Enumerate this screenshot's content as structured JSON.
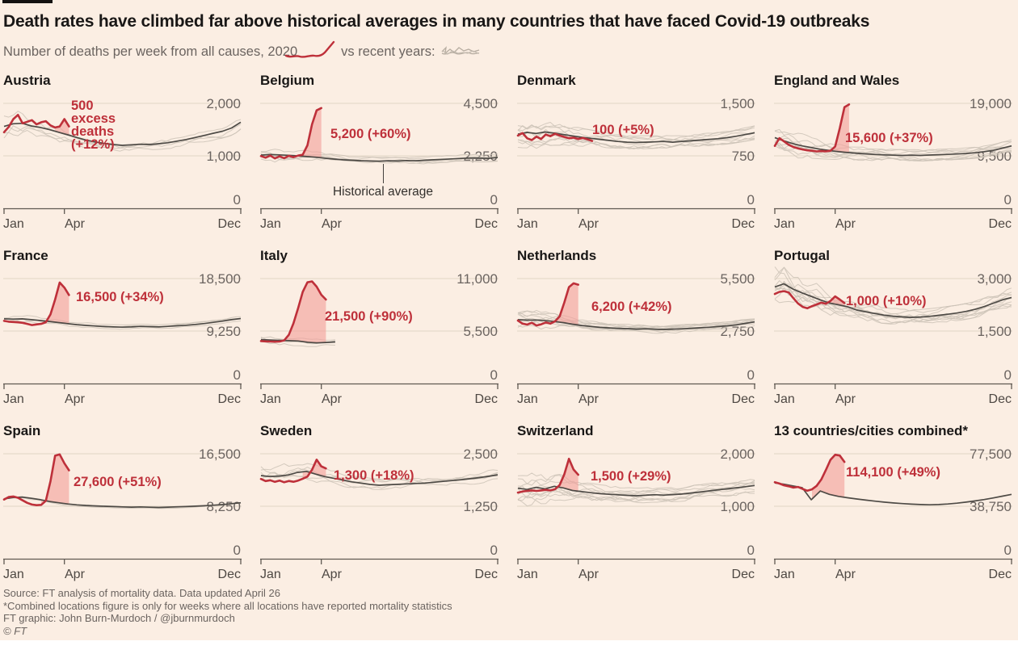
{
  "header": {
    "title": "Death rates have climbed far above historical averages in many countries that have faced Covid-19 outbreaks",
    "subtitle_prefix": "Number of deaths per week from all causes,",
    "subtitle_2020": "2020",
    "subtitle_vs": "vs recent years:"
  },
  "icons": {
    "legend_2020": "red-2020-line-icon",
    "legend_recent": "grey-recent-years-lines-icon"
  },
  "colors": {
    "background": "#FBEEE3",
    "red": "#BE303A",
    "shade": "#F2A09B",
    "avg": "#45413D",
    "recent": "#CDC3B7",
    "grid": "#E7DACB",
    "axis": "#5f5952",
    "ylabel": "#6b6460",
    "xlabel": "#4e4843",
    "title": "#191716"
  },
  "footer": {
    "source": "Source: FT analysis of mortality data. Data updated April 26",
    "note": "*Combined locations figure is only for weeks where all locations have reported mortality statistics",
    "credit": "FT graphic: John Burn-Murdoch / @jburnmurdoch",
    "copyright": "© FT"
  },
  "x_axis": {
    "tick_labels": [
      "Jan",
      "Apr",
      "Dec"
    ],
    "tick_weeks": [
      1,
      14,
      52
    ],
    "weeks_per_year": 52
  },
  "series_legend": {
    "red": "2020 deaths per week",
    "dark": "Historical average",
    "grey": "Individual recent years"
  },
  "chart_data": [
    {
      "type": "line",
      "name": "Austria",
      "ylim": [
        0,
        2000
      ],
      "yticks": [
        "2,000",
        "1,000",
        "0"
      ],
      "annotation": {
        "lines": [
          "500",
          "excess",
          "deaths",
          "(+12%)"
        ],
        "x": 84,
        "y": 8
      },
      "shade_from": 12,
      "recent_count": 4,
      "noise_amp": 0.05,
      "seed": 11,
      "end_week": 52,
      "avg": [
        1560,
        1610,
        1620,
        1570,
        1540,
        1500,
        1450,
        1400,
        1350,
        1300,
        1265,
        1235,
        1215,
        1200,
        1210,
        1220,
        1215,
        1230,
        1250,
        1280,
        1310,
        1350,
        1390,
        1430,
        1470,
        1530,
        1640
      ],
      "y2020": [
        1450,
        1550,
        1700,
        1780,
        1620,
        1650,
        1680,
        1600,
        1640,
        1660,
        1580,
        1540,
        1560,
        1700,
        1560
      ]
    },
    {
      "type": "line",
      "name": "Belgium",
      "ylim": [
        0,
        4500
      ],
      "yticks": [
        "4,500",
        "2,250",
        "0"
      ],
      "annotation": {
        "lines": [
          "5,200 (+60%)"
        ],
        "x": 87,
        "y": 43
      },
      "extra_label": {
        "text": "Historical average",
        "x": 152,
        "line_top": 88,
        "line_bottom": 112,
        "text_top": 114
      },
      "shade_from": 9,
      "recent_count": 5,
      "noise_amp": 0.04,
      "seed": 22,
      "end_week": 52,
      "avg": [
        2280,
        2310,
        2290,
        2270,
        2250,
        2220,
        2190,
        2150,
        2110,
        2080,
        2060,
        2040,
        2030,
        2020,
        2040,
        2030,
        2050,
        2040,
        2060,
        2080,
        2100,
        2120,
        2140,
        2160,
        2150,
        2140,
        2180
      ],
      "y2020": [
        2240,
        2170,
        2260,
        2140,
        2230,
        2150,
        2250,
        2190,
        2260,
        2300,
        2700,
        3600,
        4200,
        4300
      ]
    },
    {
      "type": "line",
      "name": "Denmark",
      "ylim": [
        0,
        1500
      ],
      "yticks": [
        "1,500",
        "750",
        "0"
      ],
      "annotation": {
        "lines": [
          "100 (+5%)"
        ],
        "x": 93,
        "y": 38
      },
      "shade_from": 12,
      "recent_count": 9,
      "noise_amp": 0.05,
      "seed": 33,
      "end_week": 52,
      "avg": [
        1060,
        1085,
        1070,
        1090,
        1075,
        1055,
        1035,
        1015,
        1000,
        985,
        970,
        955,
        945,
        940,
        945,
        950,
        955,
        945,
        955,
        965,
        975,
        985,
        995,
        1010,
        1030,
        1055,
        1080
      ],
      "y2020": [
        1040,
        1075,
        1000,
        975,
        1025,
        990,
        1055,
        1030,
        1065,
        1040,
        1020,
        1000,
        1010,
        990,
        1005,
        985,
        962
      ]
    },
    {
      "type": "line",
      "name": "England and Wales",
      "ylim": [
        0,
        19000
      ],
      "yticks": [
        "19,000",
        "9,500",
        "0"
      ],
      "annotation": {
        "lines": [
          "15,600 (+37%)"
        ],
        "x": 88,
        "y": 48
      },
      "shade_from": 13,
      "recent_count": 9,
      "noise_amp": 0.055,
      "seed": 44,
      "end_week": 52,
      "avg": [
        12800,
        12200,
        11700,
        11300,
        11000,
        10700,
        10450,
        10250,
        10100,
        9950,
        9850,
        9750,
        9680,
        9620,
        9580,
        9620,
        9580,
        9640,
        9700,
        9760,
        9830,
        9920,
        10050,
        10250,
        10500,
        10900,
        11300
      ],
      "y2020": [
        11300,
        12700,
        12100,
        11500,
        11100,
        10850,
        10650,
        10500,
        10420,
        10300,
        10360,
        10300,
        10420,
        11200,
        14500,
        18300,
        18800
      ]
    },
    {
      "type": "line",
      "name": "France",
      "ylim": [
        0,
        18500
      ],
      "yticks": [
        "18,500",
        "9,250",
        "0"
      ],
      "annotation": {
        "lines": [
          "16,500 (+34%)"
        ],
        "x": 90,
        "y": 28
      },
      "shade_from": 10,
      "recent_count": 3,
      "noise_amp": 0.02,
      "seed": 55,
      "end_week": 52,
      "avg": [
        11400,
        11350,
        11400,
        11250,
        11100,
        10950,
        10750,
        10550,
        10380,
        10250,
        10150,
        10050,
        9980,
        9930,
        9980,
        10080,
        10030,
        9980,
        10080,
        10180,
        10280,
        10400,
        10580,
        10780,
        11000,
        11250,
        11450
      ],
      "y2020": [
        11050,
        10900,
        10850,
        10780,
        10700,
        10520,
        10300,
        10420,
        10520,
        10800,
        12200,
        14800,
        17800,
        16900,
        15600
      ]
    },
    {
      "type": "line",
      "name": "Italy",
      "ylim": [
        0,
        11000
      ],
      "yticks": [
        "11,000",
        "5,500",
        "0"
      ],
      "annotation": {
        "lines": [
          "21,500 (+90%)"
        ],
        "x": 80,
        "y": 52
      },
      "shade_from": 6,
      "recent_count": 4,
      "noise_amp": 0.035,
      "seed": 66,
      "end_week": 17,
      "avg": [
        4600,
        4560,
        4520,
        4490,
        4460,
        4320,
        4260,
        4310,
        4360
      ],
      "y2020": [
        4450,
        4420,
        4400,
        4380,
        4400,
        4520,
        5100,
        6300,
        7900,
        9600,
        10600,
        10700,
        10150,
        9300,
        8800
      ]
    },
    {
      "type": "line",
      "name": "Netherlands",
      "ylim": [
        0,
        5500
      ],
      "yticks": [
        "5,500",
        "2,750",
        "0"
      ],
      "annotation": {
        "lines": [
          "6,200 (+42%)"
        ],
        "x": 92,
        "y": 40
      },
      "shade_from": 9,
      "recent_count": 9,
      "noise_amp": 0.04,
      "seed": 77,
      "end_week": 52,
      "avg": [
        3350,
        3320,
        3330,
        3290,
        3250,
        3190,
        3110,
        3040,
        2990,
        2945,
        2915,
        2895,
        2875,
        2850,
        2870,
        2850,
        2830,
        2850,
        2870,
        2895,
        2920,
        2950,
        2985,
        3025,
        3080,
        3150,
        3230
      ],
      "y2020": [
        3300,
        3140,
        3090,
        3180,
        3040,
        3100,
        3200,
        3140,
        3260,
        3520,
        4250,
        5050,
        5250,
        5180
      ]
    },
    {
      "type": "line",
      "name": "Portugal",
      "ylim": [
        0,
        3000
      ],
      "yticks": [
        "3,000",
        "1,500",
        "0"
      ],
      "annotation": {
        "lines": [
          "1,000 (+10%)"
        ],
        "x": 89,
        "y": 33
      },
      "shade_from": 12,
      "recent_count": 10,
      "noise_amp": 0.06,
      "seed": 88,
      "end_week": 52,
      "avg": [
        2760,
        2850,
        2700,
        2590,
        2490,
        2390,
        2300,
        2250,
        2195,
        2100,
        2050,
        2000,
        1955,
        1925,
        1905,
        1890,
        1900,
        1920,
        1950,
        1980,
        2015,
        2060,
        2120,
        2200,
        2295,
        2390,
        2460
      ],
      "y2020": [
        2560,
        2620,
        2640,
        2600,
        2440,
        2290,
        2190,
        2150,
        2210,
        2260,
        2310,
        2280,
        2360,
        2490,
        2400,
        2300
      ]
    },
    {
      "type": "line",
      "name": "Spain",
      "ylim": [
        0,
        16500
      ],
      "yticks": [
        "16,500",
        "8,250",
        "0"
      ],
      "annotation": {
        "lines": [
          "27,600 (+51%)"
        ],
        "x": 87,
        "y": 40
      },
      "shade_from": 9,
      "recent_count": 2,
      "noise_amp": 0.012,
      "seed": 99,
      "end_week": 52,
      "avg": [
        9400,
        9620,
        9700,
        9500,
        9280,
        9000,
        8790,
        8600,
        8460,
        8360,
        8300,
        8250,
        8200,
        8150,
        8110,
        8150,
        8100,
        8060,
        8110,
        8160,
        8210,
        8260,
        8320,
        8410,
        8510,
        8660,
        8800
      ],
      "y2020": [
        9300,
        9700,
        9790,
        9580,
        9180,
        8780,
        8520,
        8420,
        8470,
        9100,
        12200,
        16200,
        16400,
        15000,
        13900
      ]
    },
    {
      "type": "line",
      "name": "Sweden",
      "ylim": [
        0,
        2500
      ],
      "yticks": [
        "2,500",
        "1,250",
        "0"
      ],
      "annotation": {
        "lines": [
          "1,300 (+18%)"
        ],
        "x": 91,
        "y": 32
      },
      "shade_from": 10,
      "recent_count": 5,
      "noise_amp": 0.04,
      "seed": 110,
      "end_week": 52,
      "avg": [
        1980,
        1955,
        1970,
        1995,
        2055,
        2080,
        2015,
        1955,
        1915,
        1875,
        1830,
        1800,
        1770,
        1750,
        1762,
        1772,
        1782,
        1792,
        1802,
        1822,
        1842,
        1862,
        1882,
        1905,
        1932,
        1962,
        2000
      ],
      "y2020": [
        1900,
        1850,
        1870,
        1830,
        1862,
        1822,
        1852,
        1832,
        1862,
        1905,
        1955,
        2120,
        2360,
        2200,
        2150
      ]
    },
    {
      "type": "line",
      "name": "Switzerland",
      "ylim": [
        0,
        2000
      ],
      "yticks": [
        "2,000",
        "1,000",
        "0"
      ],
      "annotation": {
        "lines": [
          "1,500 (+29%)"
        ],
        "x": 91,
        "y": 33
      },
      "shade_from": 9,
      "recent_count": 9,
      "noise_amp": 0.06,
      "seed": 121,
      "end_week": 52,
      "avg": [
        1345,
        1320,
        1360,
        1330,
        1380,
        1350,
        1300,
        1278,
        1258,
        1240,
        1228,
        1218,
        1208,
        1200,
        1210,
        1220,
        1212,
        1222,
        1232,
        1252,
        1272,
        1292,
        1312,
        1332,
        1352,
        1372,
        1395
      ],
      "y2020": [
        1260,
        1282,
        1292,
        1302,
        1292,
        1302,
        1312,
        1302,
        1325,
        1405,
        1610,
        1905,
        1700,
        1600
      ]
    },
    {
      "type": "line",
      "name": "13 countries/cities combined*",
      "ylim": [
        0,
        77500
      ],
      "yticks": [
        "77,500",
        "38,750",
        "0"
      ],
      "annotation": {
        "lines": [
          "114,100 (+49%)"
        ],
        "x": 89,
        "y": 28
      },
      "shade_from": 9,
      "recent_count": 0,
      "noise_amp": 0,
      "seed": 132,
      "end_week": 52,
      "avg": [
        56000,
        55000,
        53800,
        52500,
        43500,
        50000,
        47500,
        46000,
        45000,
        44100,
        43300,
        42500,
        41800,
        41200,
        40700,
        40300,
        40000,
        39800,
        40000,
        40400,
        41000,
        41800,
        42700,
        43700,
        44900,
        46200,
        47500
      ],
      "y2020": [
        56500,
        55500,
        54200,
        53500,
        52500,
        53000,
        51500,
        50200,
        51200,
        53800,
        58500,
        65500,
        73000,
        76800,
        76200,
        71500
      ]
    }
  ]
}
